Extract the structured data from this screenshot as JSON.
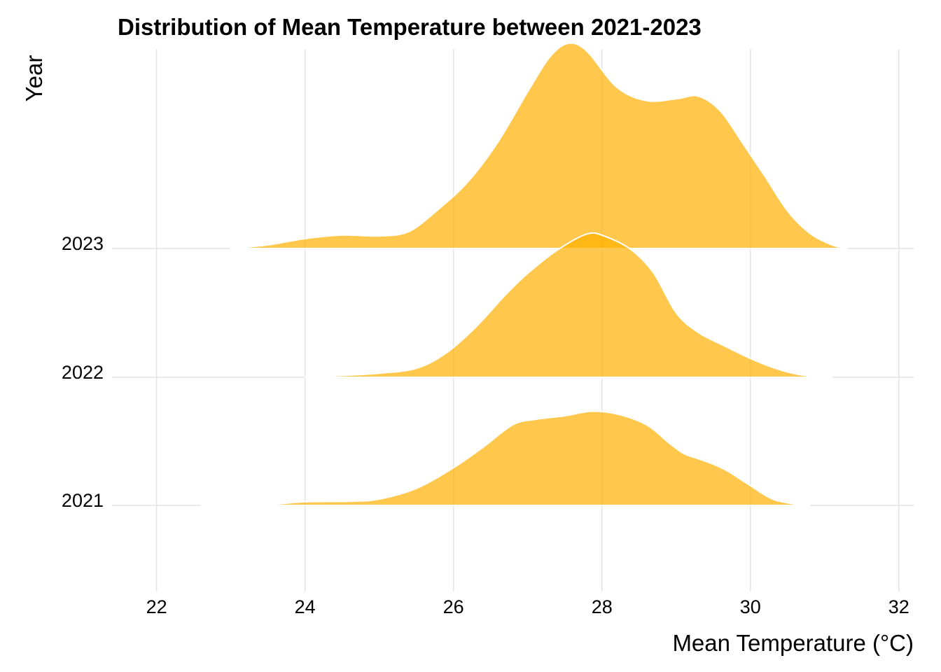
{
  "chart_data": {
    "type": "ridgeline",
    "title": "Distribution of Mean Temperature between 2021-2023",
    "xlabel": "Mean Temperature (°C)",
    "ylabel": "Year",
    "xlim": [
      21.4,
      32.2
    ],
    "x_ticks": [
      "22",
      "24",
      "26",
      "28",
      "30",
      "32"
    ],
    "grid": true,
    "fill_color": "#FFB000",
    "fill_opacity": 0.7,
    "outline_color": "#FFFFFF",
    "series": [
      {
        "name": "2021",
        "points": [
          [
            22.6,
            0.0
          ],
          [
            23.2,
            0.01
          ],
          [
            23.6,
            0.015
          ],
          [
            24.0,
            0.04
          ],
          [
            24.6,
            0.045
          ],
          [
            25.0,
            0.07
          ],
          [
            25.5,
            0.19
          ],
          [
            26.0,
            0.42
          ],
          [
            26.4,
            0.65
          ],
          [
            26.8,
            0.9
          ],
          [
            27.1,
            0.96
          ],
          [
            27.5,
            1.0
          ],
          [
            27.85,
            1.05
          ],
          [
            28.2,
            1.02
          ],
          [
            28.6,
            0.9
          ],
          [
            28.9,
            0.7
          ],
          [
            29.1,
            0.58
          ],
          [
            29.3,
            0.52
          ],
          [
            29.5,
            0.46
          ],
          [
            29.7,
            0.38
          ],
          [
            30.0,
            0.22
          ],
          [
            30.3,
            0.07
          ],
          [
            30.6,
            0.015
          ],
          [
            30.8,
            0.0
          ]
        ]
      },
      {
        "name": "2022",
        "points": [
          [
            24.0,
            0.0
          ],
          [
            24.5,
            0.02
          ],
          [
            25.0,
            0.045
          ],
          [
            25.5,
            0.1
          ],
          [
            25.9,
            0.27
          ],
          [
            26.3,
            0.56
          ],
          [
            26.7,
            0.92
          ],
          [
            27.0,
            1.16
          ],
          [
            27.4,
            1.42
          ],
          [
            27.8,
            1.6
          ],
          [
            28.05,
            1.57
          ],
          [
            28.4,
            1.42
          ],
          [
            28.7,
            1.16
          ],
          [
            29.0,
            0.72
          ],
          [
            29.3,
            0.5
          ],
          [
            29.7,
            0.33
          ],
          [
            30.0,
            0.21
          ],
          [
            30.3,
            0.11
          ],
          [
            30.6,
            0.04
          ],
          [
            30.9,
            0.005
          ],
          [
            31.1,
            0.0
          ]
        ]
      },
      {
        "name": "2023",
        "points": [
          [
            23.0,
            0.0
          ],
          [
            23.5,
            0.04
          ],
          [
            24.0,
            0.11
          ],
          [
            24.5,
            0.15
          ],
          [
            25.0,
            0.14
          ],
          [
            25.4,
            0.19
          ],
          [
            25.8,
            0.44
          ],
          [
            26.2,
            0.75
          ],
          [
            26.6,
            1.19
          ],
          [
            27.0,
            1.75
          ],
          [
            27.3,
            2.14
          ],
          [
            27.55,
            2.29
          ],
          [
            27.8,
            2.2
          ],
          [
            28.2,
            1.8
          ],
          [
            28.6,
            1.65
          ],
          [
            29.0,
            1.67
          ],
          [
            29.3,
            1.7
          ],
          [
            29.6,
            1.53
          ],
          [
            29.9,
            1.17
          ],
          [
            30.2,
            0.8
          ],
          [
            30.5,
            0.42
          ],
          [
            30.8,
            0.17
          ],
          [
            31.1,
            0.04
          ],
          [
            31.3,
            0.0
          ]
        ]
      }
    ]
  }
}
